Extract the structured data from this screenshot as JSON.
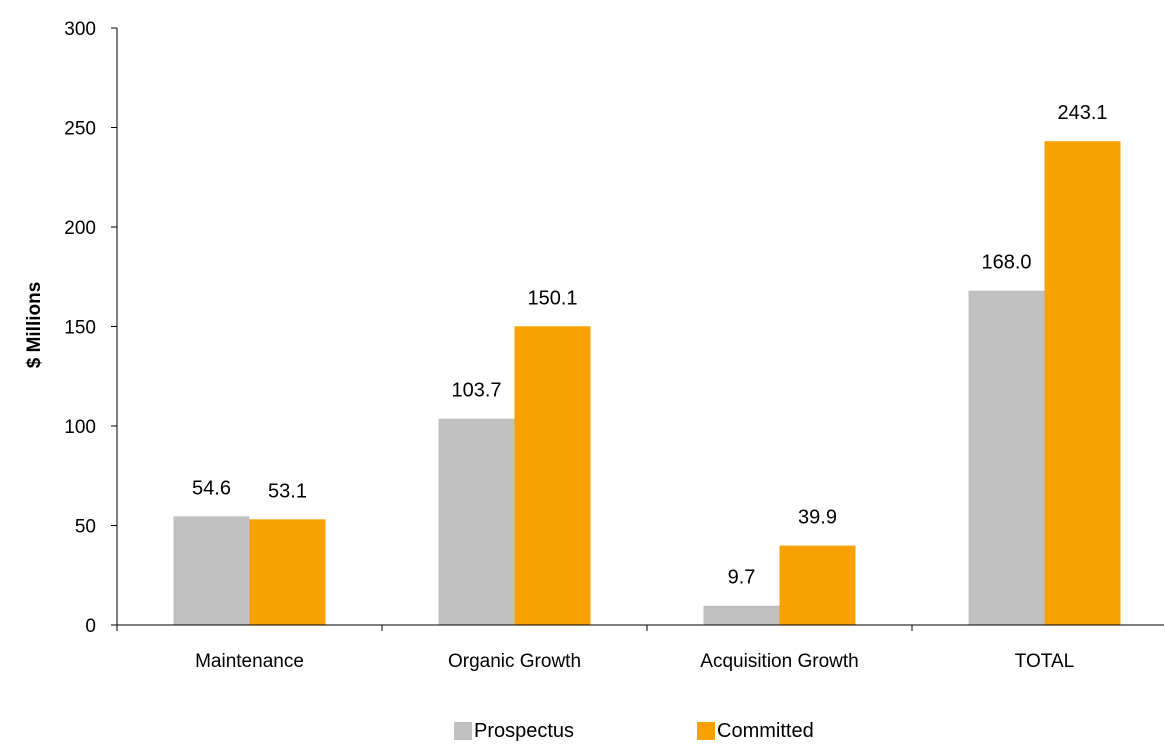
{
  "chart_data": {
    "type": "bar",
    "title": "",
    "xlabel": "",
    "ylabel": "$ Millions",
    "ylim": [
      0,
      300
    ],
    "yticks": [
      0,
      50,
      100,
      150,
      200,
      250,
      300
    ],
    "grid": false,
    "legend_position": "bottom",
    "categories": [
      "Maintenance",
      "Organic Growth",
      "Acquisition Growth",
      "TOTAL"
    ],
    "series": [
      {
        "name": "Prospectus",
        "color": "#c0c0c0",
        "values": [
          54.6,
          103.7,
          9.7,
          168.0
        ],
        "labels": [
          "54.6",
          "103.7",
          "9.7",
          "168.0"
        ]
      },
      {
        "name": "Committed",
        "color": "#f9a100",
        "values": [
          53.1,
          150.1,
          39.9,
          243.1
        ],
        "labels": [
          "53.1",
          "150.1",
          "39.9",
          "243.1"
        ]
      }
    ]
  }
}
